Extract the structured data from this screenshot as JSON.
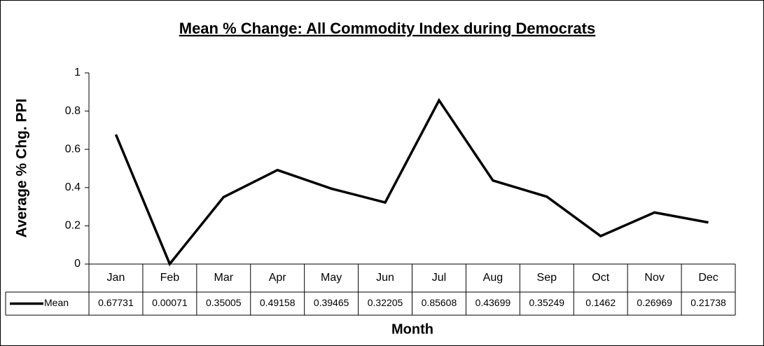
{
  "chart_data": {
    "type": "line",
    "title": "Mean % Change: All Commodity Index during Democrats",
    "x_label": "Month",
    "y_label": "Average % Chg. PPI",
    "categories": [
      "Jan",
      "Feb",
      "Mar",
      "Apr",
      "May",
      "Jun",
      "Jul",
      "Aug",
      "Sep",
      "Oct",
      "Nov",
      "Dec"
    ],
    "series": [
      {
        "name": "Mean",
        "color": "#000000",
        "values": [
          0.67731,
          0.00071,
          0.35005,
          0.49158,
          0.39465,
          0.32205,
          0.85608,
          0.43699,
          0.35249,
          0.1462,
          0.26969,
          0.21738
        ]
      }
    ],
    "ylim": [
      0,
      1
    ],
    "yticks": [
      0,
      0.2,
      0.4,
      0.6,
      0.8,
      1
    ],
    "data_table": true
  }
}
